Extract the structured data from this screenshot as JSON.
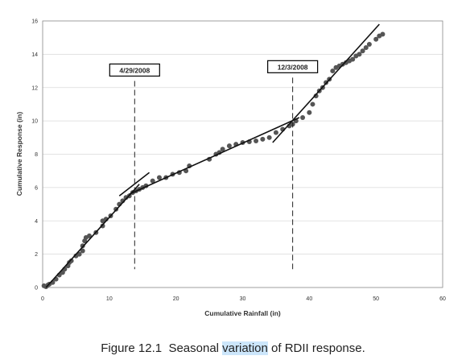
{
  "chart_data": {
    "type": "scatter",
    "xlabel": "Cumulative Rainfall (in)",
    "ylabel": "Cumulative Response (in)",
    "xlim": [
      0,
      60
    ],
    "ylim": [
      0,
      16
    ],
    "xticks": [
      0,
      10,
      20,
      30,
      40,
      50,
      60
    ],
    "yticks": [
      0,
      2,
      4,
      6,
      8,
      10,
      12,
      14,
      16
    ],
    "grid": "horizontal",
    "legend": "none",
    "colors": {
      "points": "#555555",
      "trend": "#111111",
      "grid": "#d9d9d9",
      "annotation_box": "#000000"
    },
    "points": [
      [
        0.2,
        0.1
      ],
      [
        0.5,
        0.05
      ],
      [
        0.8,
        0.15
      ],
      [
        1.0,
        0.2
      ],
      [
        1.5,
        0.3
      ],
      [
        2.0,
        0.5
      ],
      [
        2.5,
        0.75
      ],
      [
        3.0,
        0.9
      ],
      [
        3.3,
        1.1
      ],
      [
        3.8,
        1.3
      ],
      [
        4.0,
        1.5
      ],
      [
        4.3,
        1.6
      ],
      [
        5.0,
        1.9
      ],
      [
        5.5,
        2.0
      ],
      [
        6.0,
        2.2
      ],
      [
        6.0,
        2.5
      ],
      [
        6.3,
        2.8
      ],
      [
        6.5,
        3.0
      ],
      [
        7.0,
        3.1
      ],
      [
        8.0,
        3.3
      ],
      [
        9.0,
        3.7
      ],
      [
        9.0,
        4.0
      ],
      [
        9.5,
        4.1
      ],
      [
        10.2,
        4.3
      ],
      [
        11.0,
        4.7
      ],
      [
        11.5,
        5.0
      ],
      [
        12.0,
        5.2
      ],
      [
        12.5,
        5.4
      ],
      [
        13.0,
        5.5
      ],
      [
        13.5,
        5.7
      ],
      [
        14.0,
        5.8
      ],
      [
        14.5,
        5.9
      ],
      [
        15.0,
        6.0
      ],
      [
        15.5,
        6.1
      ],
      [
        16.5,
        6.4
      ],
      [
        17.5,
        6.6
      ],
      [
        18.5,
        6.6
      ],
      [
        19.5,
        6.8
      ],
      [
        20.5,
        6.9
      ],
      [
        21.5,
        7.0
      ],
      [
        22.0,
        7.3
      ],
      [
        25.0,
        7.7
      ],
      [
        26.0,
        8.0
      ],
      [
        26.5,
        8.1
      ],
      [
        27.0,
        8.3
      ],
      [
        28.0,
        8.5
      ],
      [
        29.0,
        8.6
      ],
      [
        30.0,
        8.7
      ],
      [
        31.0,
        8.75
      ],
      [
        32.0,
        8.8
      ],
      [
        33.0,
        8.9
      ],
      [
        34.0,
        9.0
      ],
      [
        35.0,
        9.3
      ],
      [
        36.0,
        9.5
      ],
      [
        37.0,
        9.7
      ],
      [
        37.5,
        9.8
      ],
      [
        38.0,
        10.0
      ],
      [
        39.0,
        10.2
      ],
      [
        40.0,
        10.5
      ],
      [
        40.5,
        11.0
      ],
      [
        41.0,
        11.5
      ],
      [
        41.5,
        11.8
      ],
      [
        42.0,
        12.0
      ],
      [
        42.5,
        12.3
      ],
      [
        43.0,
        12.5
      ],
      [
        43.5,
        13.0
      ],
      [
        44.0,
        13.2
      ],
      [
        44.5,
        13.3
      ],
      [
        45.0,
        13.4
      ],
      [
        45.5,
        13.5
      ],
      [
        46.0,
        13.6
      ],
      [
        46.5,
        13.7
      ],
      [
        47.0,
        13.9
      ],
      [
        47.5,
        14.0
      ],
      [
        48.0,
        14.2
      ],
      [
        48.5,
        14.4
      ],
      [
        49.0,
        14.6
      ],
      [
        50.0,
        14.9
      ],
      [
        50.5,
        15.1
      ],
      [
        51.0,
        15.2
      ]
    ],
    "trend_lines": [
      {
        "x": [
          0.5,
          14.5
        ],
        "y": [
          0.0,
          6.2
        ]
      },
      {
        "x": [
          11.5,
          16.0
        ],
        "y": [
          5.5,
          6.9
        ]
      },
      {
        "x": [
          13.0,
          38.5
        ],
        "y": [
          5.6,
          10.2
        ]
      },
      {
        "x": [
          34.5,
          50.5
        ],
        "y": [
          8.7,
          15.8
        ]
      }
    ],
    "markers": [
      {
        "label": "4/29/2008",
        "x": 13.8,
        "y_from": 1.1,
        "y_to": 12.4
      },
      {
        "label": "12/3/2008",
        "x": 37.5,
        "y_from": 1.1,
        "y_to": 12.6
      }
    ]
  },
  "caption": {
    "prefix": "Figure 12.1  Seasonal ",
    "highlighted": "variation",
    "suffix": " of RDII response."
  }
}
